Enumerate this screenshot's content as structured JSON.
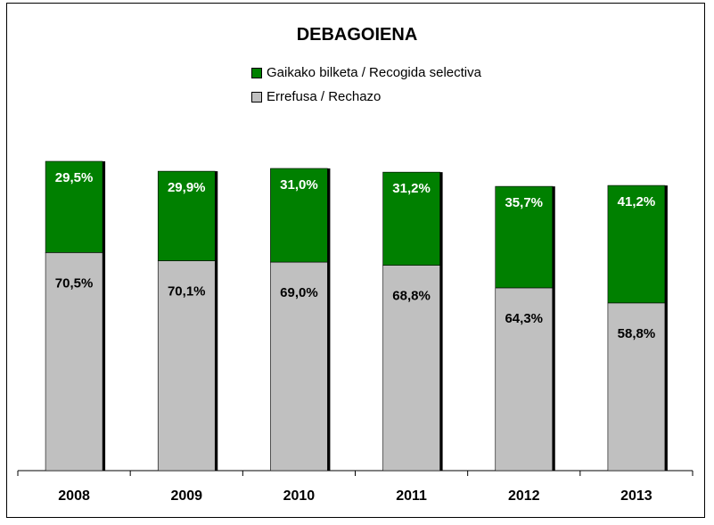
{
  "chart_data": {
    "type": "bar",
    "stacked": true,
    "title": "DEBAGOIENA",
    "categories": [
      "2008",
      "2009",
      "2010",
      "2011",
      "2012",
      "2013"
    ],
    "series": [
      {
        "name": "Errefusa / Rechazo",
        "color": "#c0c0c0",
        "values": [
          70.5,
          70.1,
          69.0,
          68.8,
          64.3,
          58.8
        ],
        "labels": [
          "70,5%",
          "70,1%",
          "69,0%",
          "68,8%",
          "64,3%",
          "58,8%"
        ]
      },
      {
        "name": "Gaikako bilketa / Recogida selectiva",
        "color": "#008000",
        "values": [
          29.5,
          29.9,
          31.0,
          31.2,
          35.7,
          41.2
        ],
        "labels": [
          "29,5%",
          "29,9%",
          "31,0%",
          "31,2%",
          "35,7%",
          "41,2%"
        ]
      }
    ],
    "bar_total_relative": [
      100,
      96.8,
      97.7,
      96.5,
      91.9,
      92.2
    ],
    "xlabel": "",
    "ylabel": "",
    "legend_position": "top-center",
    "grid": false
  }
}
